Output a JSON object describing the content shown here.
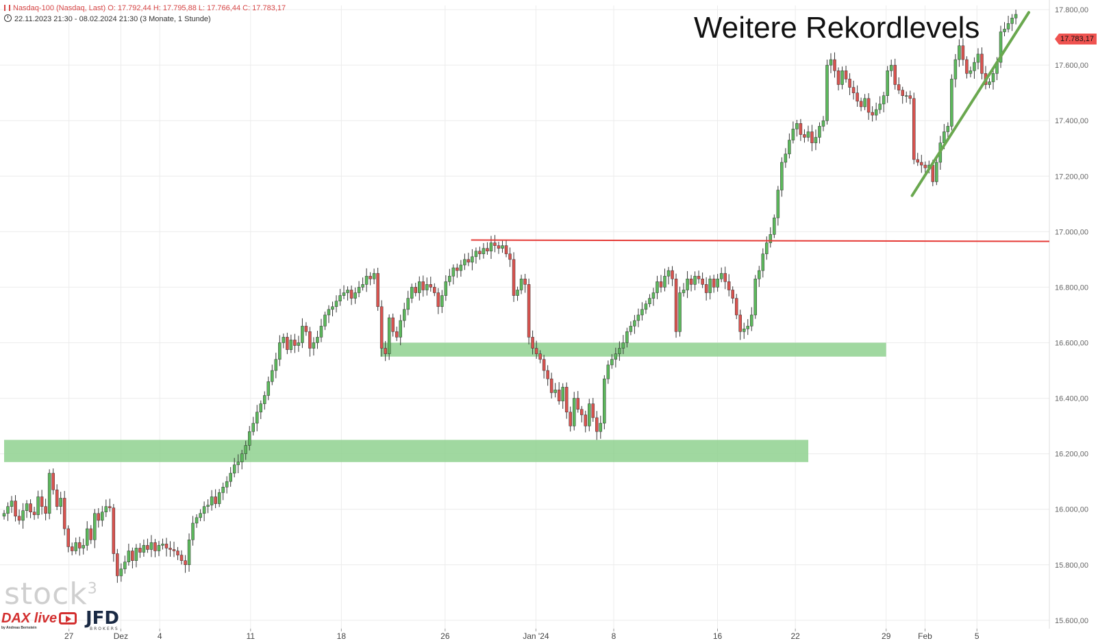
{
  "header": {
    "line1": "Nasdaq-100 (Nasdaq, Last)  O: 17.792,44  H: 17.795,88  L: 17.766,44  C: 17.783,17",
    "line2": "22.11.2023 21:30 - 08.02.2024 21:30   (3 Monate, 1 Stunde)"
  },
  "title_text": "Weitere Rekordlevels",
  "last_price_label": "17.783,17",
  "logos": {
    "stock": "stock",
    "stock_sup": "3",
    "dax": "DAX live",
    "dax_by": "by Andreas Bernstein",
    "jfd": "JFD",
    "jfd_sub": "BROKERS"
  },
  "colors": {
    "up": "#5cb85c",
    "down": "#d9534f",
    "resistance": "#e53935",
    "support_zone": "#8fd18f",
    "trendline": "#6aa84f",
    "grid": "#ececec"
  },
  "chart_data": {
    "type": "candlestick",
    "ylim": [
      15570,
      17815
    ],
    "y_ticks": [
      15600,
      15800,
      16000,
      16200,
      16400,
      16600,
      16800,
      17000,
      17200,
      17400,
      17600,
      17800
    ],
    "y_tick_labels": [
      "15.600,00",
      "15.800,00",
      "16.000,00",
      "16.200,00",
      "16.400,00",
      "16.600,00",
      "16.800,00",
      "17.000,00",
      "17.200,00",
      "17.400,00",
      "17.600,00",
      "17.800,00"
    ],
    "x_labels": [
      "27",
      "Dez",
      "4",
      "11",
      "18",
      "26",
      "Jan '24",
      "8",
      "16",
      "22",
      "29",
      "Feb",
      "5"
    ],
    "x_label_dates": [
      "2023-11-27",
      "2023-12-01",
      "2023-12-04",
      "2023-12-11",
      "2023-12-18",
      "2023-12-26",
      "2024-01-02",
      "2024-01-08",
      "2024-01-16",
      "2024-01-22",
      "2024-01-29",
      "2024-02-01",
      "2024-02-05"
    ],
    "date_range": [
      "2023-11-22",
      "2024-02-08"
    ],
    "closes": [
      [
        15985,
        16010,
        16030,
        15975,
        15960,
        15995,
        16020,
        15990,
        15980
      ],
      [
        16045,
        16010,
        15985,
        16130,
        16070,
        16010,
        16040,
        15930,
        15865,
        15850
      ],
      [
        15880,
        15860,
        15870,
        15930,
        15890,
        15985,
        15960,
        15990,
        16010,
        16005
      ],
      [
        15840,
        15760,
        15785,
        15810,
        15850,
        15815,
        15860,
        15845,
        15870,
        15855
      ],
      [
        15880,
        15850,
        15870,
        15875,
        15860,
        15855,
        15850,
        15835,
        15815,
        15800
      ],
      [
        15890,
        15950,
        15970,
        15985,
        16010,
        16015,
        16045,
        16020,
        16060,
        16080
      ],
      [
        16100,
        16130,
        16160,
        16170,
        16200,
        16230,
        16280,
        16310,
        16350,
        16380
      ],
      [
        16410,
        16460,
        16500,
        16540,
        16600,
        16620,
        16575,
        16610,
        16590,
        16600
      ],
      [
        16660,
        16640,
        16580,
        16600,
        16620,
        16660,
        16700,
        16720,
        16730,
        16750
      ],
      [
        16770,
        16780,
        16790,
        16760,
        16780,
        16800,
        16810,
        16840,
        16830,
        16850
      ],
      [
        16730,
        16580,
        16560,
        16690,
        16640,
        16620,
        16680,
        16720,
        16760,
        16800
      ],
      [
        16780,
        16820,
        16790,
        16810,
        16800,
        16780,
        16730,
        16770,
        16820,
        16840
      ],
      [
        16870,
        16860,
        16880,
        16900,
        16890,
        16910,
        16930,
        16920,
        16940,
        16930
      ],
      [
        16960,
        16950,
        16940,
        16950,
        16920,
        16900,
        16770,
        16790,
        16830,
        16810
      ],
      [
        16620,
        16580,
        16560,
        16540,
        16500,
        16470,
        16420,
        16430,
        16390,
        16440
      ],
      [
        16350,
        16300,
        16400,
        16360,
        16340,
        16300,
        16380,
        16330,
        16280,
        16310
      ],
      [
        16470,
        16520,
        16540,
        16560,
        16580,
        16600,
        16640,
        16660,
        16680,
        16700
      ],
      [
        16720,
        16740,
        16760,
        16780,
        16820,
        16800,
        16840,
        16860,
        16830,
        16640
      ],
      [
        16780,
        16790,
        16830,
        16810,
        16840,
        16830,
        16810,
        16780,
        16830,
        16800
      ],
      [
        16830,
        16850,
        16820,
        16790,
        16760,
        16700,
        16640,
        16650,
        16660,
        16700
      ],
      [
        16830,
        16860,
        16920,
        16960,
        16990,
        17050,
        17150,
        17250,
        17280,
        17330
      ],
      [
        17370,
        17390,
        17350,
        17340,
        17360,
        17320,
        17340,
        17380,
        17400,
        17600
      ],
      [
        17620,
        17580,
        17530,
        17580,
        17550,
        17520,
        17500,
        17470,
        17450,
        17480
      ],
      [
        17430,
        17420,
        17440,
        17460,
        17490,
        17580,
        17600,
        17530,
        17510,
        17490
      ],
      [
        17490,
        17480,
        17260,
        17250,
        17240,
        17230,
        17240,
        17180,
        17250,
        17320
      ],
      [
        17360,
        17380,
        17550,
        17620,
        17670,
        17620,
        17570,
        17580,
        17610,
        17640
      ],
      [
        17570,
        17530,
        17540,
        17570,
        17610,
        17720,
        17730,
        17750,
        17770,
        17783
      ]
    ],
    "resistance_level": 16970,
    "support_zones": [
      {
        "from": 16550,
        "to": 16600,
        "start": "2023-12-21",
        "end": "2024-01-29"
      },
      {
        "from": 16170,
        "to": 16250,
        "start": "2023-11-22",
        "end": "2024-01-23"
      }
    ],
    "trendline": {
      "from": {
        "date": "2024-01-31",
        "value": 17130
      },
      "to": {
        "date": "2024-02-09",
        "value": 17790
      }
    }
  }
}
